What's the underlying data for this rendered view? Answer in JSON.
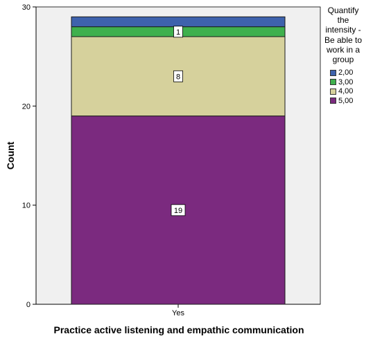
{
  "chart_data": {
    "type": "bar",
    "stacked": true,
    "categories": [
      "Yes"
    ],
    "series": [
      {
        "name": "5,00",
        "values": [
          19
        ],
        "color": "#7b2a7f",
        "label": "19"
      },
      {
        "name": "4,00",
        "values": [
          8
        ],
        "color": "#d6d19c",
        "label": "8"
      },
      {
        "name": "3,00",
        "values": [
          1
        ],
        "color": "#3fb04d",
        "label": "1"
      },
      {
        "name": "2,00",
        "values": [
          1
        ],
        "color": "#3e62ac",
        "label": ""
      }
    ],
    "xlabel": "Practice active listening and empathic communication",
    "ylabel": "Count",
    "ylim": [
      0,
      30
    ],
    "yticks": [
      0,
      10,
      20,
      30
    ],
    "legend": {
      "title": "Quantify the intensity - Be able to work in a group",
      "placement": "right",
      "order": [
        "2,00",
        "3,00",
        "4,00",
        "5,00"
      ]
    },
    "plot_background": "#f0f0f0",
    "grid": false
  }
}
